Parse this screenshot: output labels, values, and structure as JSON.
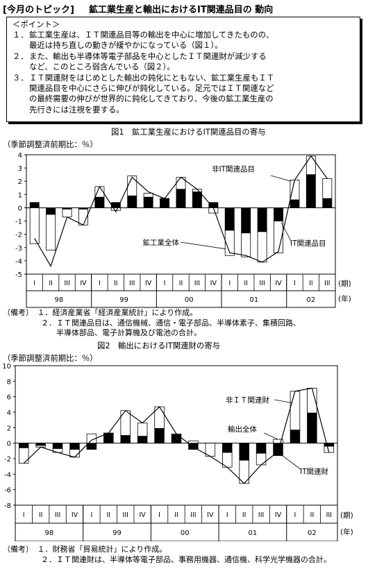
{
  "header": {
    "tag": "[今月のトピック]",
    "title": "鉱工業生産と輸出におけるIT関連品目の 動向"
  },
  "points": {
    "heading": "＜ポイント＞",
    "items": [
      {
        "num": "１．",
        "lines": [
          "鉱工業生産は、ＩＴ関連品目等の輸出を中心に増加してきたものの、",
          "最近は持ち直しの動きが緩やかになっている（図１）。"
        ]
      },
      {
        "num": "２．",
        "lines": [
          "また、輸出も半導体等電子部品を中心としたＩＴ関連財が減少する",
          "など、このところ弱含んでいる（図２）。"
        ]
      },
      {
        "num": "３．",
        "lines": [
          "ＩＴ関連財をはじめとした輸出の鈍化にともない、鉱工業生産もＩＴ",
          "関連品目を中心にさらに伸びが鈍化している。足元ではＩＴ関連など",
          "の最終需要の伸びが世界的に鈍化してきており、今後の鉱工業生産の",
          "先行きには注視を要する。"
        ]
      }
    ]
  },
  "fig1": {
    "title": "図1　鉱工業生産におけるIT関連品目の寄与",
    "unit_label": "（季節調整済前期比：％）",
    "period_label": "(期)",
    "year_label": "(年)",
    "notes": [
      "（備考）　１．経済産業省「経済産業統計」により作成。",
      "　　　　　２．ＩＴ関連品目は、通信機械、通信・電子部品、半導体素子、集積回路、",
      "　　　　　　　半導体部品、電子計算機及び電池の合計。"
    ]
  },
  "fig2": {
    "title": "図2　輸出におけるIT関連財の寄与",
    "unit_label": "（季節調整済前期比：％）",
    "period_label": "(期)",
    "year_label": "(年)",
    "notes": [
      "（備考）　１．財務省「貿易統計」により作成。",
      "　　　　　２．ＩＴ関連財は、半導体等電子部品、事務用機器、通信機、科学光学機器の合計。"
    ]
  },
  "chart_data": [
    {
      "type": "bar",
      "title": "図1　鉱工業生産におけるIT関連品目の寄与",
      "ylabel": "（季節調整済前期比：％）",
      "ylim": [
        -5,
        4
      ],
      "yticks": [
        4,
        3,
        2,
        1,
        0,
        -1,
        -2,
        -3,
        -4,
        -5
      ],
      "quarters": [
        "I",
        "II",
        "III",
        "IV",
        "I",
        "II",
        "III",
        "IV",
        "I",
        "II",
        "III",
        "IV",
        "I",
        "II",
        "III",
        "IV",
        "I",
        "II",
        "III"
      ],
      "years": [
        {
          "label": "98",
          "span": 4
        },
        {
          "label": "99",
          "span": 4
        },
        {
          "label": "00",
          "span": 4
        },
        {
          "label": "01",
          "span": 4
        },
        {
          "label": "02",
          "span": 3
        }
      ],
      "stacked": true,
      "series": [
        {
          "name": "IT関連品目",
          "color": "#000000",
          "values": [
            0.4,
            -0.5,
            -0.1,
            -0.1,
            0.8,
            0.4,
            0.9,
            0.8,
            0.7,
            1.4,
            1.2,
            0.4,
            -1.7,
            -1.9,
            -1.8,
            -1.0,
            0.6,
            2.5,
            0.7
          ]
        },
        {
          "name": "非IT関連品目",
          "color": "#ffffff",
          "values": [
            -2.7,
            -2.7,
            -0.6,
            -1.2,
            0.8,
            -0.2,
            1.5,
            0.3,
            0.0,
            0.9,
            0.2,
            -0.4,
            -1.9,
            -1.8,
            -2.3,
            -2.4,
            1.5,
            1.4,
            1.5
          ]
        },
        {
          "name": "鉱工業全体",
          "type": "line",
          "color": "#000000",
          "values": [
            -2.3,
            -4.4,
            -0.7,
            -1.3,
            1.6,
            -0.3,
            2.3,
            1.2,
            0.7,
            2.3,
            1.4,
            0.0,
            -3.4,
            -3.6,
            -4.1,
            -3.3,
            2.1,
            3.9,
            2.2
          ]
        }
      ],
      "annotations": [
        "非IT関連品目",
        "鉱工業全体",
        "IT関連品目"
      ]
    },
    {
      "type": "bar",
      "title": "図2　輸出におけるIT関連財の寄与",
      "ylabel": "（季節調整済前期比：％）",
      "ylim": [
        -8,
        10
      ],
      "yticks": [
        10,
        8,
        6,
        4,
        2,
        0,
        -2,
        -4,
        -6,
        -8
      ],
      "quarters": [
        "I",
        "II",
        "III",
        "IV",
        "I",
        "II",
        "III",
        "IV",
        "I",
        "II",
        "III",
        "IV",
        "I",
        "II",
        "III",
        "IV",
        "I",
        "II",
        "III"
      ],
      "years": [
        {
          "label": "98",
          "span": 4
        },
        {
          "label": "99",
          "span": 4
        },
        {
          "label": "00",
          "span": 4
        },
        {
          "label": "01",
          "span": 4
        },
        {
          "label": "02",
          "span": 3
        }
      ],
      "stacked": true,
      "series": [
        {
          "name": "IT関連財",
          "color": "#000000",
          "values": [
            -0.6,
            -0.3,
            -0.7,
            -0.8,
            -0.8,
            1.3,
            1.0,
            0.9,
            1.9,
            1.1,
            -0.8,
            0.0,
            -1.2,
            -2.2,
            -1.3,
            -1.6,
            1.7,
            3.9,
            -0.4
          ]
        },
        {
          "name": "非ＩＴ関連財",
          "color": "#ffffff",
          "values": [
            -2.0,
            -0.2,
            -0.5,
            -1.0,
            1.2,
            0.0,
            3.2,
            1.7,
            2.8,
            0.1,
            0.3,
            -1.7,
            -1.9,
            -3.0,
            -1.5,
            0.5,
            5.0,
            3.2,
            -0.8
          ]
        },
        {
          "name": "輸出全体",
          "type": "line",
          "color": "#000000",
          "values": [
            -2.6,
            -0.5,
            -1.2,
            -1.8,
            0.4,
            1.3,
            4.2,
            2.6,
            4.7,
            1.2,
            -0.5,
            -1.7,
            -3.1,
            -5.2,
            -2.8,
            -1.1,
            6.7,
            7.1,
            -1.2
          ]
        }
      ],
      "annotations": [
        "非ＩＴ関連財",
        "輸出全体",
        "IT関連財"
      ]
    }
  ]
}
